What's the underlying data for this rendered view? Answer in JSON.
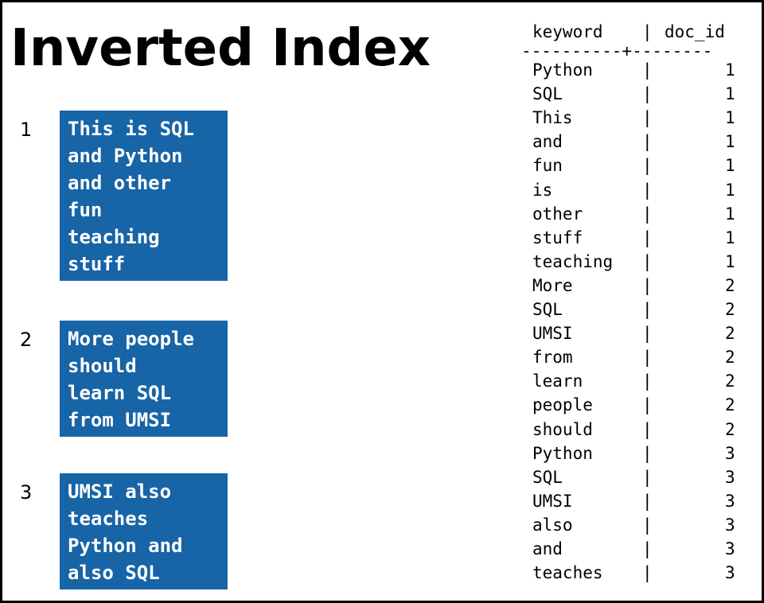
{
  "title": "Inverted Index",
  "documents": [
    {
      "id": "1",
      "lines": [
        "This is SQL",
        "and Python",
        "and other",
        "fun",
        "teaching",
        "stuff"
      ]
    },
    {
      "id": "2",
      "lines": [
        "More people",
        "should",
        "learn SQL",
        "from UMSI"
      ]
    },
    {
      "id": "3",
      "lines": [
        "UMSI also",
        "teaches",
        "Python and",
        "also SQL"
      ]
    }
  ],
  "index_table": {
    "headers": {
      "keyword": "keyword",
      "doc_id": "doc_id"
    },
    "separator": "----------+--------",
    "rows": [
      {
        "keyword": "Python",
        "doc_id": "1"
      },
      {
        "keyword": "SQL",
        "doc_id": "1"
      },
      {
        "keyword": "This",
        "doc_id": "1"
      },
      {
        "keyword": "and",
        "doc_id": "1"
      },
      {
        "keyword": "fun",
        "doc_id": "1"
      },
      {
        "keyword": "is",
        "doc_id": "1"
      },
      {
        "keyword": "other",
        "doc_id": "1"
      },
      {
        "keyword": "stuff",
        "doc_id": "1"
      },
      {
        "keyword": "teaching",
        "doc_id": "1"
      },
      {
        "keyword": "More",
        "doc_id": "2"
      },
      {
        "keyword": "SQL",
        "doc_id": "2"
      },
      {
        "keyword": "UMSI",
        "doc_id": "2"
      },
      {
        "keyword": "from",
        "doc_id": "2"
      },
      {
        "keyword": "learn",
        "doc_id": "2"
      },
      {
        "keyword": "people",
        "doc_id": "2"
      },
      {
        "keyword": "should",
        "doc_id": "2"
      },
      {
        "keyword": "Python",
        "doc_id": "3"
      },
      {
        "keyword": "SQL",
        "doc_id": "3"
      },
      {
        "keyword": "UMSI",
        "doc_id": "3"
      },
      {
        "keyword": "also",
        "doc_id": "3"
      },
      {
        "keyword": "and",
        "doc_id": "3"
      },
      {
        "keyword": "teaches",
        "doc_id": "3"
      }
    ]
  },
  "colors": {
    "doc_box": "#1764a6",
    "doc_text": "#ffffff",
    "text": "#000000",
    "border": "#000000"
  }
}
